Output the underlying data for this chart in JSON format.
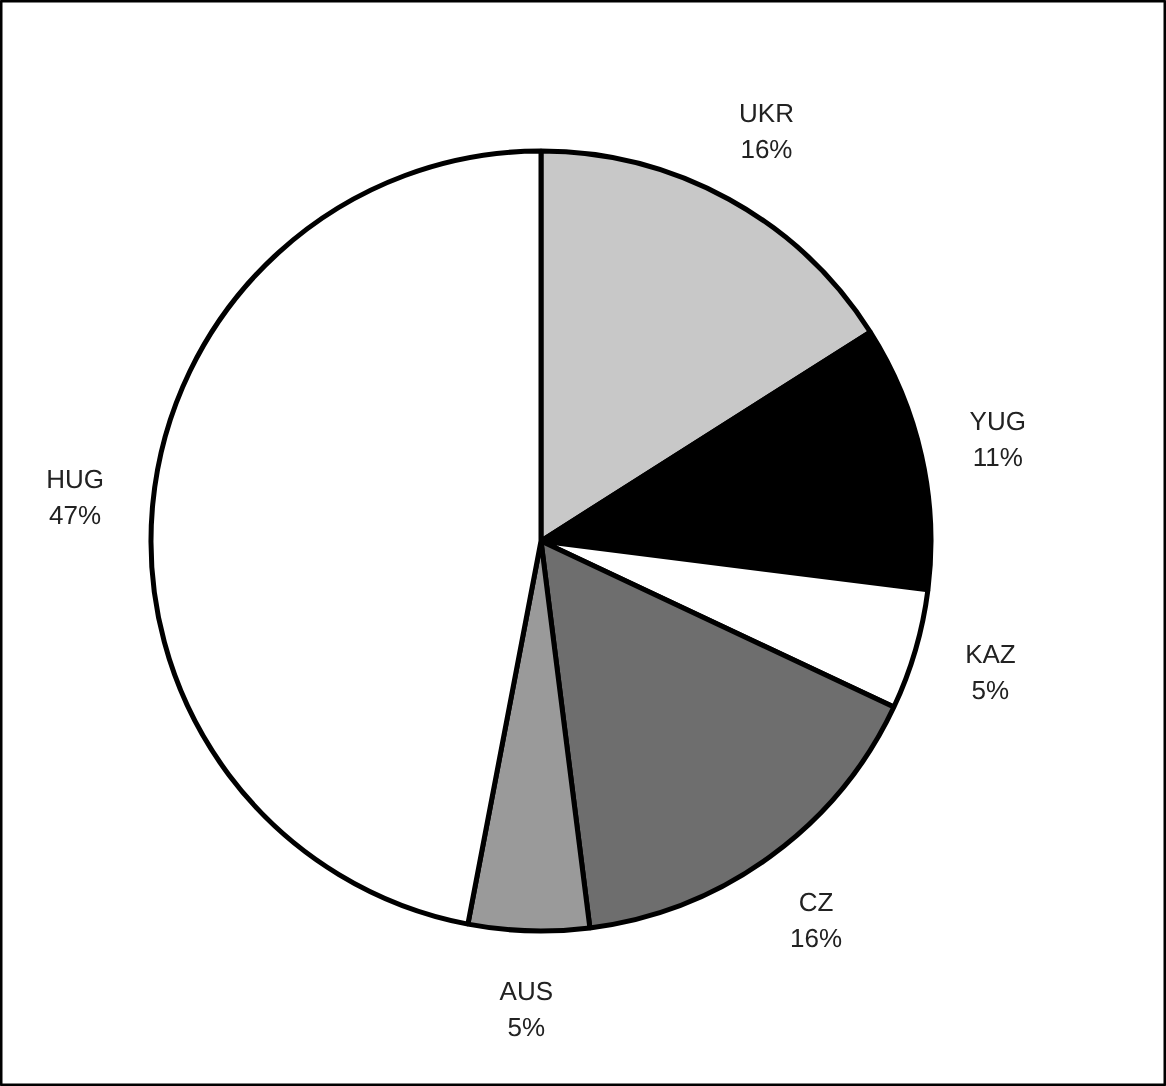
{
  "chart_data": {
    "type": "pie",
    "categories": [
      "UKR",
      "YUG",
      "KAZ",
      "CZ",
      "AUS",
      "HUG"
    ],
    "values": [
      16,
      11,
      5,
      16,
      5,
      47
    ],
    "value_labels": [
      "16%",
      "11%",
      "5%",
      "16%",
      "5%",
      "47%"
    ],
    "colors": [
      "#c8c8c8",
      "#000000",
      "#ffffff",
      "#6e6e6e",
      "#9a9a9a",
      "#ffffff"
    ]
  }
}
